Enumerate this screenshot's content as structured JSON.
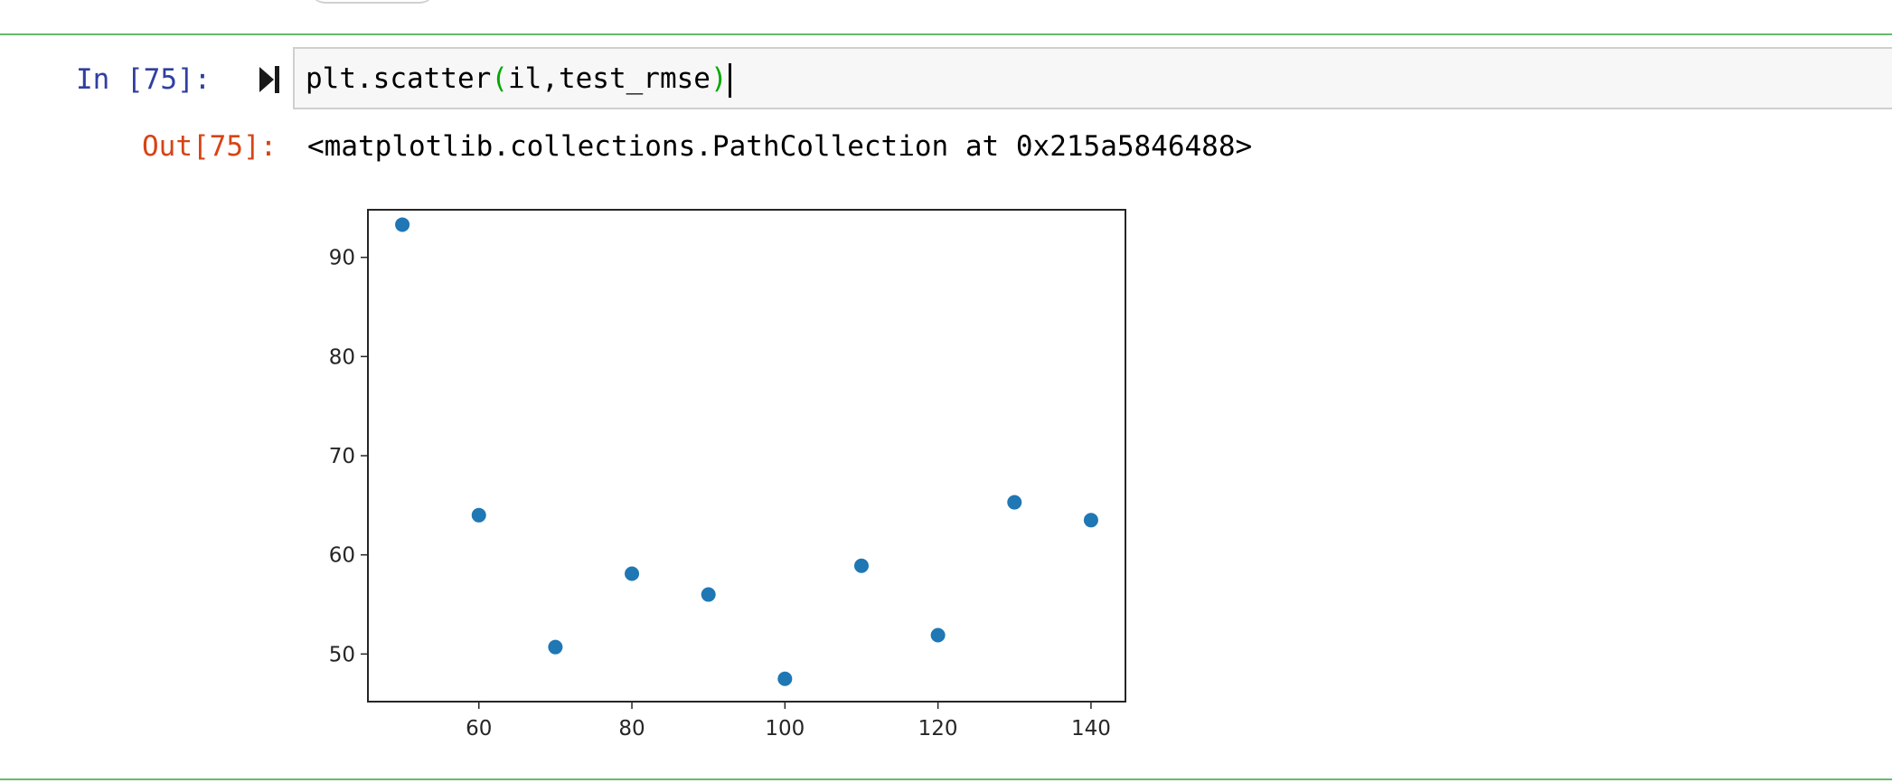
{
  "cell": {
    "in_prompt": "In [75]:",
    "code": {
      "prefix": "plt.scatter",
      "open_paren": "(",
      "args": "il,test_rmse",
      "close_paren": ")"
    },
    "out_prompt": "Out[75]:",
    "out_text": "<matplotlib.collections.PathCollection at 0x215a5846488>",
    "run_icon": "run-cell-icon"
  },
  "colors": {
    "cell_border": "#66bb6a",
    "in_prompt": "#303f9f",
    "out_prompt": "#d84315",
    "paren_match": "#00aa00",
    "marker": "#1f77b4"
  },
  "chart_data": {
    "type": "scatter",
    "title": "",
    "xlabel": "",
    "ylabel": "",
    "xlim": [
      45.5,
      144.5
    ],
    "ylim": [
      45.2,
      94.8
    ],
    "xticks": [
      60,
      80,
      100,
      120,
      140
    ],
    "yticks": [
      50,
      60,
      70,
      80,
      90
    ],
    "grid": false,
    "legend": "none",
    "series": [
      {
        "x": [
          50,
          60,
          70,
          80,
          90,
          100,
          110,
          120,
          130,
          140
        ],
        "y": [
          93.3,
          64.0,
          50.7,
          58.1,
          56.0,
          47.5,
          58.9,
          51.9,
          65.3,
          63.5
        ]
      }
    ]
  }
}
